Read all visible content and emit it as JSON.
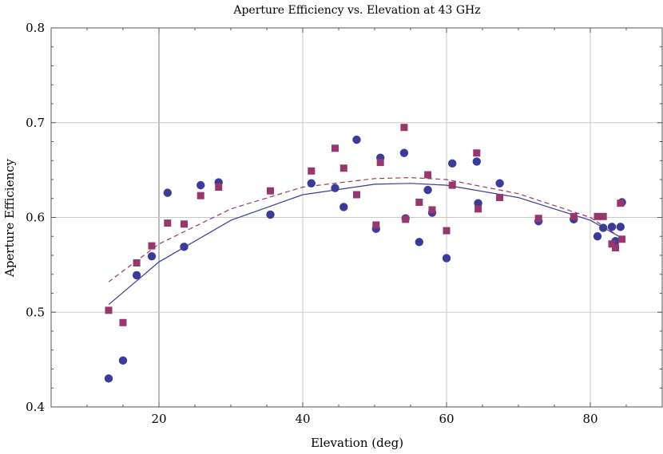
{
  "chart_data": {
    "type": "scatter",
    "title": "Aperture Efficiency vs. Elevation at 43 GHz",
    "xlabel": "Elevation (deg)",
    "ylabel": "Aperture Efficiency",
    "xlim": [
      5,
      90
    ],
    "ylim": [
      0.4,
      0.8
    ],
    "x_ticks": [
      20,
      40,
      60,
      80
    ],
    "y_ticks": [
      0.4,
      0.5,
      0.6,
      0.7,
      0.8
    ],
    "grid": true,
    "series": [
      {
        "marker": "circle",
        "color": "#3b3b9a",
        "points": [
          [
            13.0,
            0.43
          ],
          [
            15.0,
            0.449
          ],
          [
            16.9,
            0.539
          ],
          [
            19.0,
            0.559
          ],
          [
            21.2,
            0.626
          ],
          [
            23.5,
            0.569
          ],
          [
            25.8,
            0.634
          ],
          [
            28.3,
            0.637
          ],
          [
            35.5,
            0.603
          ],
          [
            41.2,
            0.636
          ],
          [
            44.5,
            0.631
          ],
          [
            45.7,
            0.611
          ],
          [
            47.5,
            0.682
          ],
          [
            50.2,
            0.588
          ],
          [
            50.8,
            0.663
          ],
          [
            54.1,
            0.668
          ],
          [
            54.3,
            0.599
          ],
          [
            56.2,
            0.574
          ],
          [
            57.4,
            0.629
          ],
          [
            58.0,
            0.605
          ],
          [
            60.0,
            0.557
          ],
          [
            60.8,
            0.657
          ],
          [
            64.2,
            0.659
          ],
          [
            64.4,
            0.615
          ],
          [
            67.4,
            0.636
          ],
          [
            72.8,
            0.596
          ],
          [
            77.7,
            0.598
          ],
          [
            81.0,
            0.58
          ],
          [
            81.8,
            0.589
          ],
          [
            83.0,
            0.59
          ],
          [
            83.5,
            0.575
          ],
          [
            84.2,
            0.59
          ],
          [
            84.4,
            0.616
          ]
        ]
      },
      {
        "marker": "square",
        "color": "#96386e",
        "points": [
          [
            13.0,
            0.502
          ],
          [
            15.0,
            0.489
          ],
          [
            16.9,
            0.552
          ],
          [
            19.0,
            0.57
          ],
          [
            21.2,
            0.594
          ],
          [
            23.5,
            0.593
          ],
          [
            25.8,
            0.623
          ],
          [
            28.3,
            0.632
          ],
          [
            35.5,
            0.628
          ],
          [
            41.2,
            0.649
          ],
          [
            44.5,
            0.673
          ],
          [
            45.7,
            0.652
          ],
          [
            47.5,
            0.624
          ],
          [
            50.2,
            0.592
          ],
          [
            50.8,
            0.658
          ],
          [
            54.1,
            0.695
          ],
          [
            54.3,
            0.598
          ],
          [
            56.2,
            0.616
          ],
          [
            57.4,
            0.645
          ],
          [
            58.0,
            0.608
          ],
          [
            60.0,
            0.586
          ],
          [
            60.8,
            0.634
          ],
          [
            64.2,
            0.668
          ],
          [
            64.4,
            0.609
          ],
          [
            67.4,
            0.621
          ],
          [
            72.8,
            0.599
          ],
          [
            77.7,
            0.601
          ],
          [
            81.0,
            0.601
          ],
          [
            81.8,
            0.601
          ],
          [
            83.0,
            0.572
          ],
          [
            83.5,
            0.568
          ],
          [
            84.2,
            0.615
          ],
          [
            84.4,
            0.577
          ]
        ]
      }
    ],
    "fits": [
      {
        "style": "solid",
        "color": "#3b3b9a",
        "x": [
          13,
          20,
          30,
          40,
          50,
          55,
          60,
          70,
          80,
          84
        ],
        "y": [
          0.508,
          0.553,
          0.597,
          0.624,
          0.635,
          0.636,
          0.634,
          0.621,
          0.597,
          0.58
        ]
      },
      {
        "style": "dashed",
        "color": "#96386e",
        "x": [
          13,
          20,
          30,
          40,
          50,
          55,
          60,
          70,
          80,
          84
        ],
        "y": [
          0.532,
          0.572,
          0.609,
          0.632,
          0.641,
          0.642,
          0.64,
          0.625,
          0.6,
          0.58
        ]
      }
    ]
  }
}
